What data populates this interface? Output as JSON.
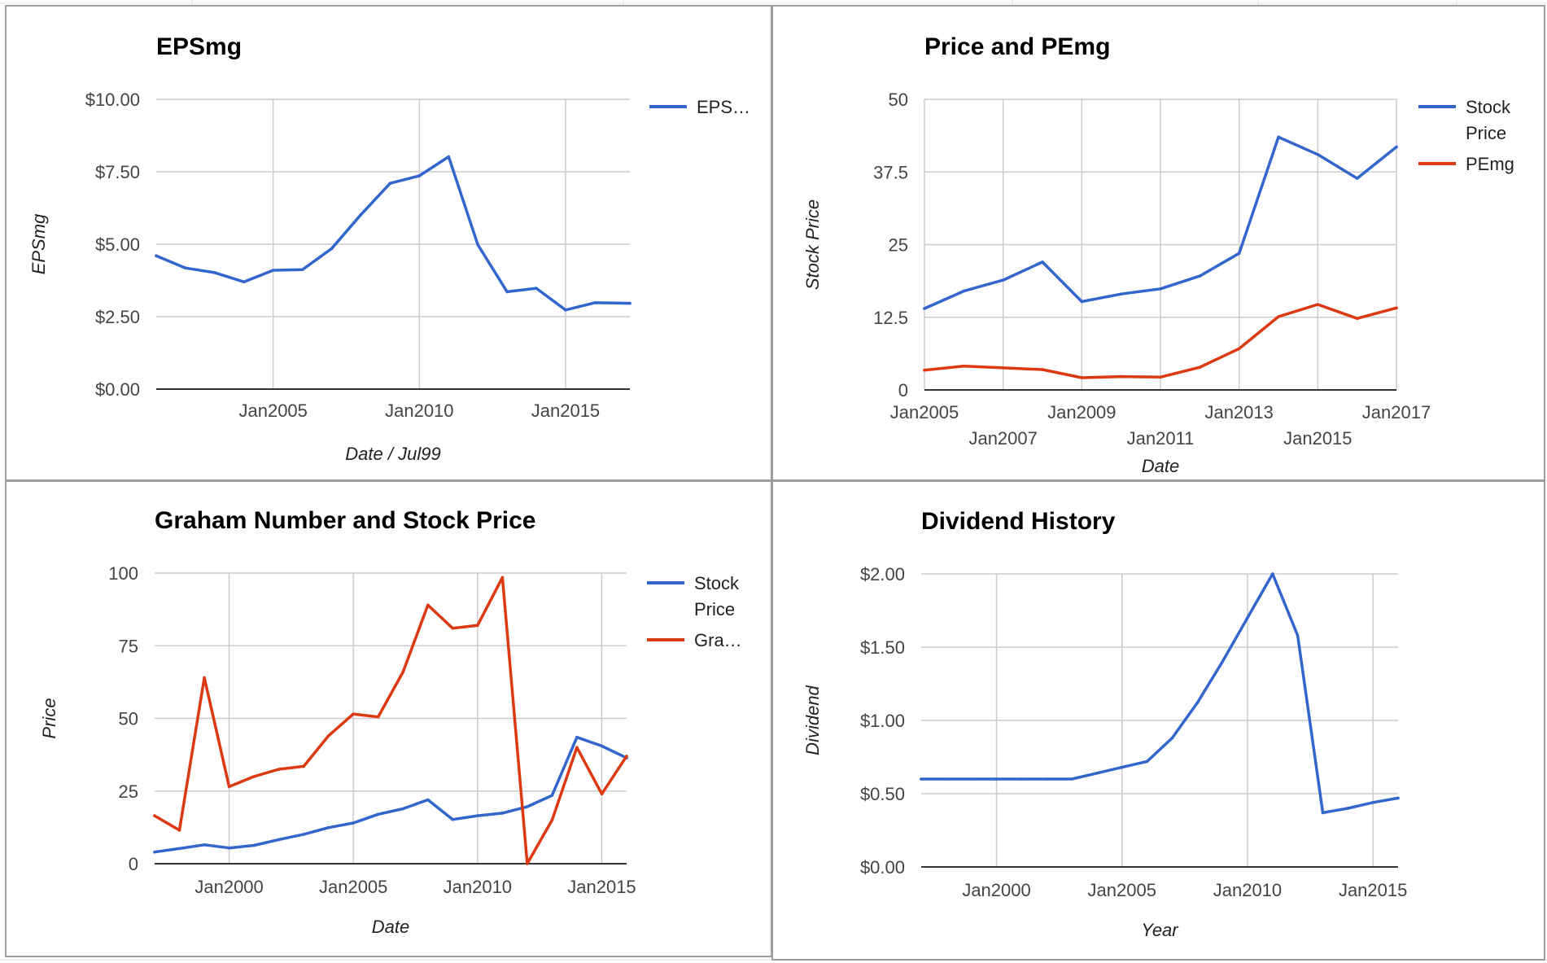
{
  "colors": {
    "blue": "#3366cc",
    "red": "#dc3912"
  },
  "chart_data": [
    {
      "id": "eps",
      "type": "line",
      "title": "EPSmg",
      "xlabel": "Date / Jul99",
      "ylabel": "EPSmg",
      "xlim": [
        2001.0,
        2017.2
      ],
      "ylim": [
        0,
        10
      ],
      "yticks": [
        0,
        2.5,
        5,
        7.5,
        10
      ],
      "ytick_labels": [
        "$0.00",
        "$2.50",
        "$5.00",
        "$7.50",
        "$10.00"
      ],
      "xticks": [
        2005,
        2010,
        2015
      ],
      "xtick_labels": [
        "Jan2005",
        "Jan2010",
        "Jan2015"
      ],
      "legend_position": "right",
      "series": [
        {
          "name": "EPS…",
          "color": "#3366cc",
          "x": [
            2001.0,
            2002.0,
            2003.0,
            2004.0,
            2005.0,
            2006.0,
            2007.0,
            2008.0,
            2009.0,
            2010.0,
            2011.0,
            2012.0,
            2013.0,
            2014.0,
            2015.0,
            2016.0,
            2017.2
          ],
          "y": [
            4.6,
            4.18,
            4.02,
            3.7,
            4.1,
            4.12,
            4.85,
            6.02,
            7.1,
            7.36,
            8.02,
            4.98,
            3.36,
            3.48,
            2.73,
            2.98,
            2.96
          ]
        }
      ]
    },
    {
      "id": "price-pemg",
      "type": "line",
      "title": "Price and PEmg",
      "xlabel": "Date",
      "ylabel": "Stock Price",
      "xlim": [
        2005,
        2017
      ],
      "ylim": [
        0,
        50
      ],
      "yticks": [
        0,
        12.5,
        25,
        37.5,
        50
      ],
      "ytick_labels": [
        "0",
        "12.5",
        "25",
        "37.5",
        "50"
      ],
      "xticks": [
        2005,
        2007,
        2009,
        2011,
        2013,
        2015,
        2017
      ],
      "xtick_labels": [
        "Jan2005",
        "Jan2007",
        "Jan2009",
        "Jan2011",
        "Jan2013",
        "Jan2015",
        "Jan2017"
      ],
      "legend_position": "right",
      "series": [
        {
          "name": "Stock Price",
          "color": "#3366cc",
          "x": [
            2005,
            2006,
            2007,
            2008,
            2009,
            2010,
            2011,
            2012,
            2013,
            2014,
            2015,
            2016,
            2017
          ],
          "y": [
            14.0,
            17.0,
            18.9,
            22.0,
            15.2,
            16.5,
            17.4,
            19.6,
            23.5,
            43.5,
            40.5,
            36.4,
            41.8
          ]
        },
        {
          "name": "PEmg",
          "color": "#dc3912",
          "x": [
            2005,
            2006,
            2007,
            2008,
            2009,
            2010,
            2011,
            2012,
            2013,
            2014,
            2015,
            2016,
            2017
          ],
          "y": [
            3.4,
            4.1,
            3.8,
            3.5,
            2.1,
            2.3,
            2.2,
            3.9,
            7.1,
            12.6,
            14.7,
            12.3,
            14.1
          ]
        }
      ]
    },
    {
      "id": "graham",
      "type": "line",
      "title": "Graham Number and Stock Price",
      "xlabel": "Date",
      "ylabel": "Price",
      "xlim": [
        1997,
        2016
      ],
      "ylim": [
        0,
        100
      ],
      "yticks": [
        0,
        25,
        50,
        75,
        100
      ],
      "ytick_labels": [
        "0",
        "25",
        "50",
        "75",
        "100"
      ],
      "xticks": [
        2000,
        2005,
        2010,
        2015
      ],
      "xtick_labels": [
        "Jan2000",
        "Jan2005",
        "Jan2010",
        "Jan2015"
      ],
      "legend_position": "right",
      "series": [
        {
          "name": "Stock Price",
          "color": "#3366cc",
          "x": [
            1997,
            1998,
            1999,
            2000,
            2001,
            2002,
            2003,
            2004,
            2005,
            2006,
            2007,
            2008,
            2009,
            2010,
            2011,
            2012,
            2013,
            2014,
            2015,
            2016
          ],
          "y": [
            4.0,
            5.2,
            6.5,
            5.4,
            6.3,
            8.3,
            10.1,
            12.4,
            14.0,
            17.0,
            18.9,
            22.0,
            15.2,
            16.5,
            17.4,
            19.6,
            23.5,
            43.5,
            40.5,
            36.4
          ]
        },
        {
          "name": "Gra…",
          "color": "#dc3912",
          "x": [
            1997,
            1998,
            1999,
            2000,
            2001,
            2002,
            2003,
            2004,
            2005,
            2006,
            2007,
            2008,
            2009,
            2010,
            2011,
            2012,
            2013,
            2014,
            2015,
            2016
          ],
          "y": [
            16.5,
            11.5,
            64.0,
            26.5,
            30.0,
            32.5,
            33.5,
            44.0,
            51.5,
            50.5,
            66.0,
            89.0,
            81.0,
            82.0,
            98.5,
            0.0,
            15.0,
            40.0,
            24.0,
            37.0
          ]
        }
      ]
    },
    {
      "id": "dividend",
      "type": "line",
      "title": "Dividend History",
      "xlabel": "Year",
      "ylabel": "Dividend",
      "xlim": [
        1997,
        2016
      ],
      "ylim": [
        0,
        2
      ],
      "yticks": [
        0,
        0.5,
        1,
        1.5,
        2
      ],
      "ytick_labels": [
        "$0.00",
        "$0.50",
        "$1.00",
        "$1.50",
        "$2.00"
      ],
      "xticks": [
        2000,
        2005,
        2010,
        2015
      ],
      "xtick_labels": [
        "Jan2000",
        "Jan2005",
        "Jan2010",
        "Jan2015"
      ],
      "legend_position": "none",
      "series": [
        {
          "name": "",
          "color": "#3366cc",
          "x": [
            1997,
            1998,
            1999,
            2000,
            2001,
            2002,
            2003,
            2004,
            2005,
            2006,
            2007,
            2008,
            2009,
            2010,
            2011,
            2012,
            2013,
            2014,
            2015,
            2016
          ],
          "y": [
            0.6,
            0.6,
            0.6,
            0.6,
            0.6,
            0.6,
            0.6,
            0.64,
            0.68,
            0.72,
            0.88,
            1.12,
            1.4,
            1.7,
            2.0,
            1.58,
            0.37,
            0.4,
            0.44,
            0.47
          ]
        }
      ]
    }
  ]
}
